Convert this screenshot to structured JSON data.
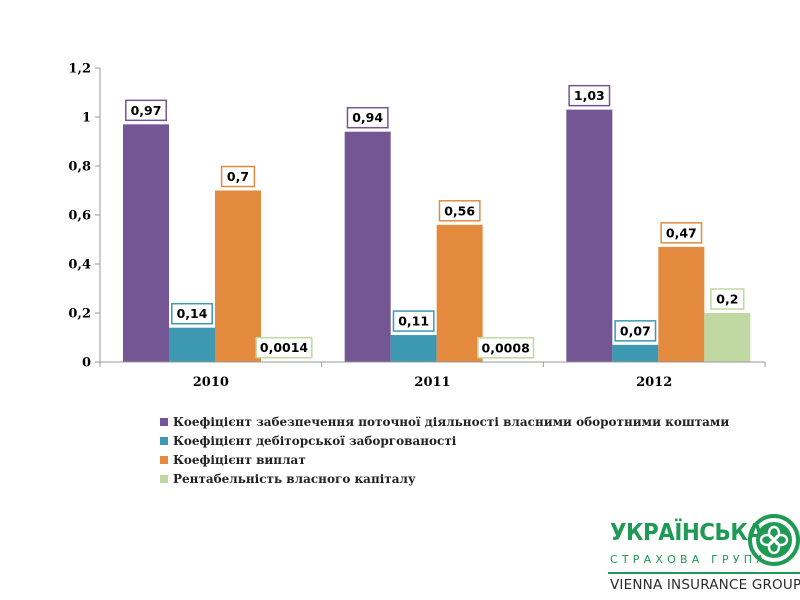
{
  "chart_data": {
    "type": "bar",
    "categories": [
      "2010",
      "2011",
      "2012"
    ],
    "y_ticks": [
      "0",
      "0,2",
      "0,4",
      "0,6",
      "0,8",
      "1",
      "1,2"
    ],
    "ylim": [
      0,
      1.2
    ],
    "grid": false,
    "legend_position": "bottom",
    "series": [
      {
        "name": "Коефіцієнт забезпечення поточної діяльності власними оборотними коштами",
        "color": "#735693",
        "values": [
          0.97,
          0.94,
          1.03
        ],
        "labels": [
          "0,97",
          "0,94",
          "1,03"
        ]
      },
      {
        "name": "Коефіцієнт дебіторської заборгованості",
        "color": "#3d98b2",
        "values": [
          0.14,
          0.11,
          0.07
        ],
        "labels": [
          "0,14",
          "0,11",
          "0,07"
        ]
      },
      {
        "name": "Коефіцієнт виплат",
        "color": "#e38a3f",
        "values": [
          0.7,
          0.56,
          0.47
        ],
        "labels": [
          "0,7",
          "0,56",
          "0,47"
        ]
      },
      {
        "name": "Рентабельність власного капіталу",
        "color": "#c0d8a1",
        "values": [
          0.0014,
          0.0008,
          0.2
        ],
        "labels": [
          "0,0014",
          "0,0008",
          "0,2"
        ]
      }
    ]
  },
  "logo": {
    "title": "УКРАЇНСЬКА",
    "subtitle": "СТРАХОВА ГРУПА",
    "group": "VIENNA INSURANCE GROUP",
    "color": "#1e9a55"
  }
}
